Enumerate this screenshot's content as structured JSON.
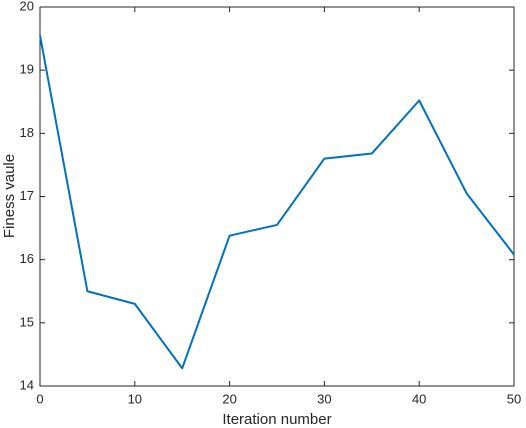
{
  "chart_data": {
    "type": "line",
    "xlabel": "Iteration number",
    "ylabel": "Finess vaule",
    "x": [
      0,
      5,
      10,
      15,
      20,
      25,
      30,
      35,
      40,
      45,
      50
    ],
    "values": [
      19.55,
      15.5,
      15.3,
      14.28,
      16.38,
      16.55,
      17.6,
      17.68,
      18.52,
      17.05,
      16.08
    ],
    "color": "#0072bd",
    "xlim": [
      0,
      50
    ],
    "xticks": [
      0,
      10,
      20,
      30,
      40,
      50
    ],
    "ylim": [
      14,
      20
    ],
    "yticks": [
      14,
      15,
      16,
      17,
      18,
      19,
      20
    ],
    "grid": false
  }
}
